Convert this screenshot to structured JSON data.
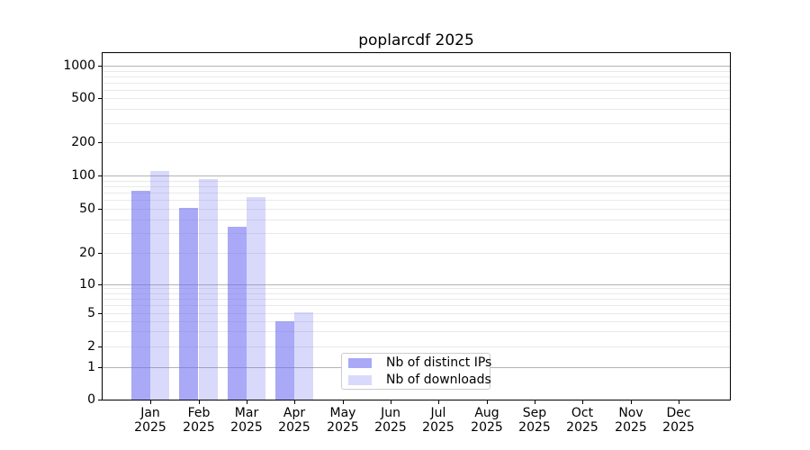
{
  "chart_data": {
    "type": "bar",
    "title": "poplarcdf 2025",
    "categories": [
      "Jan",
      "Feb",
      "Mar",
      "Apr",
      "May",
      "Jun",
      "Jul",
      "Aug",
      "Sep",
      "Oct",
      "Nov",
      "Dec"
    ],
    "category_year": "2025",
    "series": [
      {
        "name": "Nb of distinct IPs",
        "color": "#6b6bf1",
        "opacity": 0.58,
        "values": [
          73,
          51,
          34,
          4,
          0,
          0,
          0,
          0,
          0,
          0,
          0,
          0
        ]
      },
      {
        "name": "Nb of downloads",
        "color": "#6b6bf1",
        "opacity": 0.26,
        "values": [
          110,
          93,
          63,
          5,
          0,
          0,
          0,
          0,
          0,
          0,
          0,
          0
        ]
      }
    ],
    "y_ticks": [
      0,
      1,
      2,
      5,
      10,
      20,
      50,
      100,
      200,
      500,
      1000
    ],
    "y_scale": "symlog",
    "ylim": [
      0,
      1300
    ],
    "grid": true,
    "legend": {
      "position": "lower-center",
      "entries": [
        "Nb of distinct IPs",
        "Nb of downloads"
      ]
    },
    "colors": {
      "major_grid": "#b3b3b3",
      "minor_grid": "#e9e9e9",
      "axis": "#000000",
      "text": "#000000",
      "legend_border": "#cccccc",
      "background": "#ffffff"
    }
  }
}
